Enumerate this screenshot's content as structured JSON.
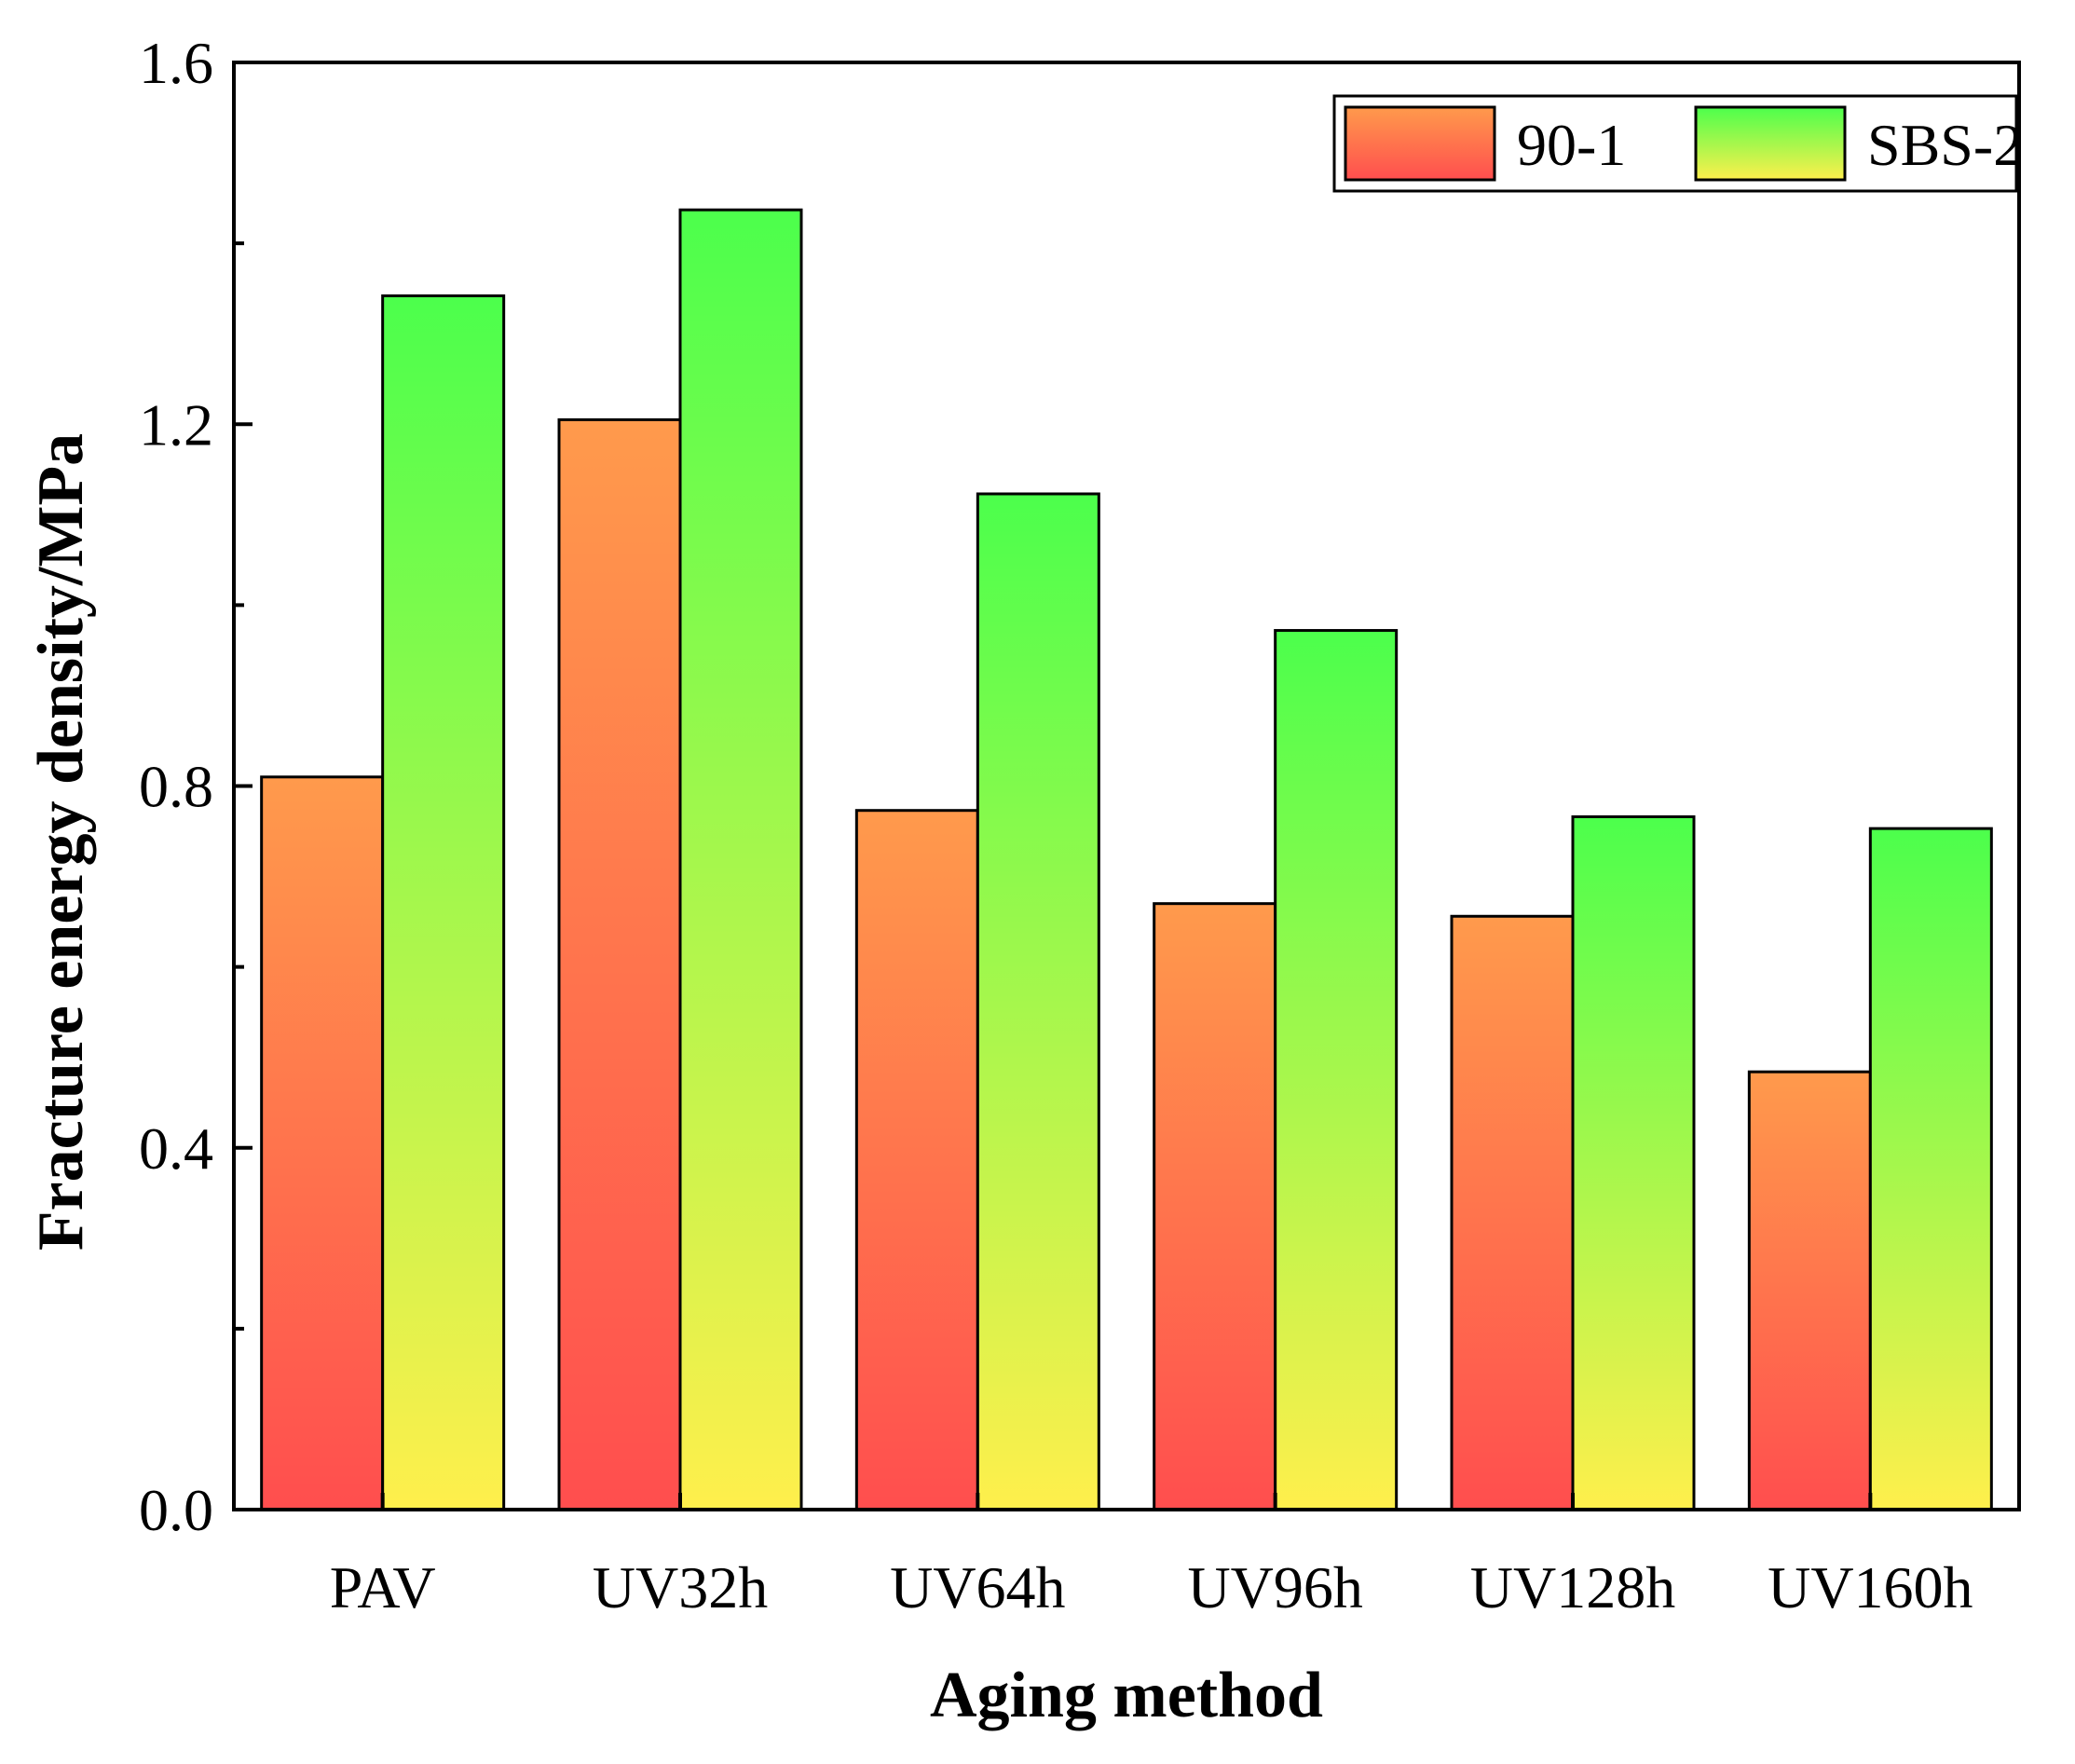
{
  "chart_data": {
    "type": "bar",
    "title": "",
    "xlabel": "Aging method",
    "ylabel": "Fracture energy density/MPa",
    "categories": [
      "PAV",
      "UV32h",
      "UV64h",
      "UV96h",
      "UV128h",
      "UV160h"
    ],
    "series": [
      {
        "name": "90-1",
        "values": [
          0.81,
          1.205,
          0.773,
          0.67,
          0.656,
          0.484
        ],
        "gradient_top": "#ff9a4c",
        "gradient_bottom": "#ff4e4e"
      },
      {
        "name": "SBS-2",
        "values": [
          1.342,
          1.437,
          1.123,
          0.972,
          0.766,
          0.753
        ],
        "gradient_top": "#4cff4c",
        "gradient_bottom": "#ffef4c"
      }
    ],
    "ylim": [
      0,
      1.6
    ],
    "yticks": [
      "0.0",
      "0.4",
      "0.8",
      "1.2",
      "1.6"
    ],
    "ytick_values": [
      0,
      0.4,
      0.8,
      1.2,
      1.6
    ],
    "yminor_values": [
      0.2,
      0.6,
      1.0,
      1.4
    ],
    "grid": false,
    "legend_position": "top-right"
  }
}
